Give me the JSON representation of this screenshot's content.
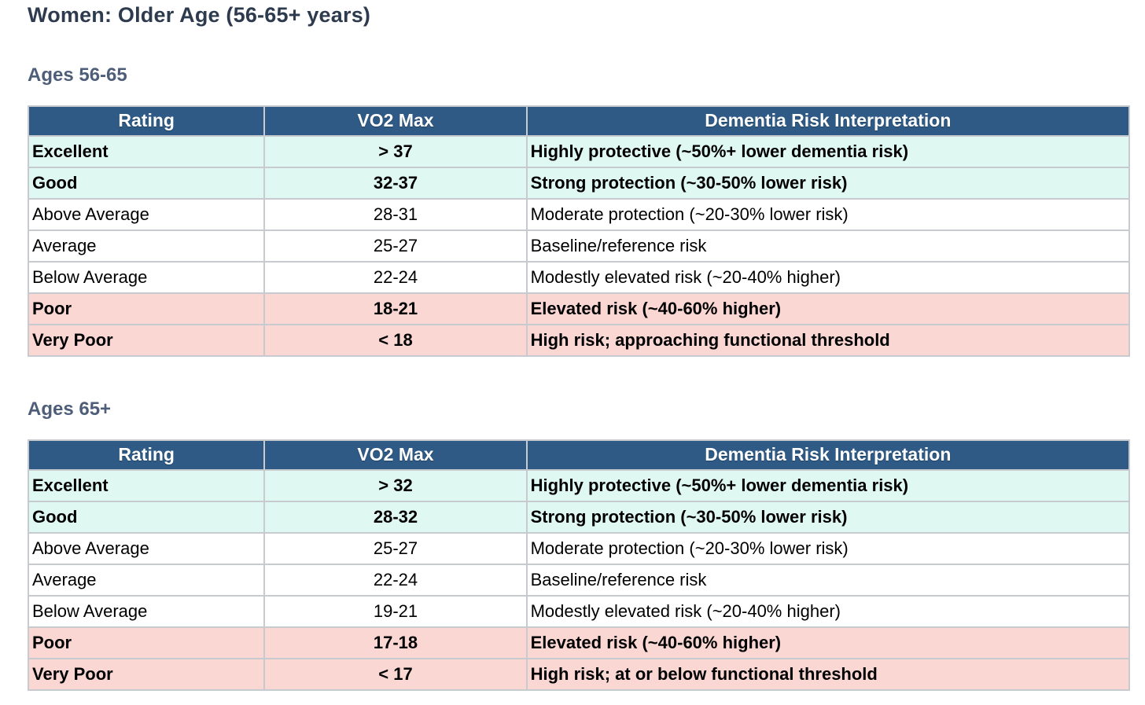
{
  "page": {
    "title": "Women: Older Age (56-65+ years)"
  },
  "colors": {
    "title_color": "#2E3B4E",
    "section_color": "#4E5E79",
    "header_bg": "#2E5A85",
    "header_text": "#FFFFFF",
    "good_bg": "#DFF8F2",
    "bad_bg": "#FBD7D4",
    "border_color": "#C7CBCF"
  },
  "chart_data": [
    {
      "type": "table",
      "title": "Ages 56-65",
      "columns": [
        "Rating",
        "VO2 Max",
        "Dementia Risk Interpretation"
      ],
      "rows": [
        [
          "Excellent",
          "> 37",
          "Highly protective (~50%+ lower dementia risk)"
        ],
        [
          "Good",
          "32-37",
          "Strong protection (~30-50% lower risk)"
        ],
        [
          "Above Average",
          "28-31",
          "Moderate protection (~20-30% lower risk)"
        ],
        [
          "Average",
          "25-27",
          "Baseline/reference risk"
        ],
        [
          "Below Average",
          "22-24",
          "Modestly elevated risk (~20-40% higher)"
        ],
        [
          "Poor",
          "18-21",
          "Elevated risk (~40-60% higher)"
        ],
        [
          "Very Poor",
          "< 18",
          "High risk; approaching functional threshold"
        ]
      ]
    },
    {
      "type": "table",
      "title": "Ages 65+",
      "columns": [
        "Rating",
        "VO2 Max",
        "Dementia Risk Interpretation"
      ],
      "rows": [
        [
          "Excellent",
          "> 32",
          "Highly protective (~50%+ lower dementia risk)"
        ],
        [
          "Good",
          "28-32",
          "Strong protection (~30-50% lower risk)"
        ],
        [
          "Above Average",
          "25-27",
          "Moderate protection (~20-30% lower risk)"
        ],
        [
          "Average",
          "22-24",
          "Baseline/reference risk"
        ],
        [
          "Below Average",
          "19-21",
          "Modestly elevated risk (~20-40% higher)"
        ],
        [
          "Poor",
          "17-18",
          "Elevated risk (~40-60% higher)"
        ],
        [
          "Very Poor",
          "< 17",
          "High risk; at or below functional threshold"
        ]
      ]
    }
  ],
  "tables": [
    {
      "section_label": "Ages 56-65",
      "columns": [
        "Rating",
        "VO2 Max",
        "Dementia Risk Interpretation"
      ],
      "rows": [
        {
          "rating": "Excellent",
          "vo2max": "> 37",
          "interpretation": "Highly protective (~50%+ lower dementia risk)",
          "tone": "good",
          "bold": true
        },
        {
          "rating": "Good",
          "vo2max": "32-37",
          "interpretation": "Strong protection (~30-50% lower risk)",
          "tone": "good",
          "bold": true
        },
        {
          "rating": "Above Average",
          "vo2max": "28-31",
          "interpretation": "Moderate protection (~20-30% lower risk)",
          "tone": "neutral",
          "bold": false
        },
        {
          "rating": "Average",
          "vo2max": "25-27",
          "interpretation": "Baseline/reference risk",
          "tone": "neutral",
          "bold": false
        },
        {
          "rating": "Below Average",
          "vo2max": "22-24",
          "interpretation": "Modestly elevated risk (~20-40% higher)",
          "tone": "neutral",
          "bold": false
        },
        {
          "rating": "Poor",
          "vo2max": "18-21",
          "interpretation": "Elevated risk (~40-60% higher)",
          "tone": "bad",
          "bold": true
        },
        {
          "rating": "Very Poor",
          "vo2max": "< 18",
          "interpretation": "High risk; approaching functional threshold",
          "tone": "bad",
          "bold": true
        }
      ]
    },
    {
      "section_label": "Ages 65+",
      "columns": [
        "Rating",
        "VO2 Max",
        "Dementia Risk Interpretation"
      ],
      "rows": [
        {
          "rating": "Excellent",
          "vo2max": "> 32",
          "interpretation": "Highly protective (~50%+ lower dementia risk)",
          "tone": "good",
          "bold": true
        },
        {
          "rating": "Good",
          "vo2max": "28-32",
          "interpretation": "Strong protection (~30-50% lower risk)",
          "tone": "good",
          "bold": true
        },
        {
          "rating": "Above Average",
          "vo2max": "25-27",
          "interpretation": "Moderate protection (~20-30% lower risk)",
          "tone": "neutral",
          "bold": false
        },
        {
          "rating": "Average",
          "vo2max": "22-24",
          "interpretation": "Baseline/reference risk",
          "tone": "neutral",
          "bold": false
        },
        {
          "rating": "Below Average",
          "vo2max": "19-21",
          "interpretation": "Modestly elevated risk (~20-40% higher)",
          "tone": "neutral",
          "bold": false
        },
        {
          "rating": "Poor",
          "vo2max": "17-18",
          "interpretation": "Elevated risk (~40-60% higher)",
          "tone": "bad",
          "bold": true
        },
        {
          "rating": "Very Poor",
          "vo2max": "< 17",
          "interpretation": "High risk; at or below functional threshold",
          "tone": "bad",
          "bold": true
        }
      ]
    }
  ]
}
